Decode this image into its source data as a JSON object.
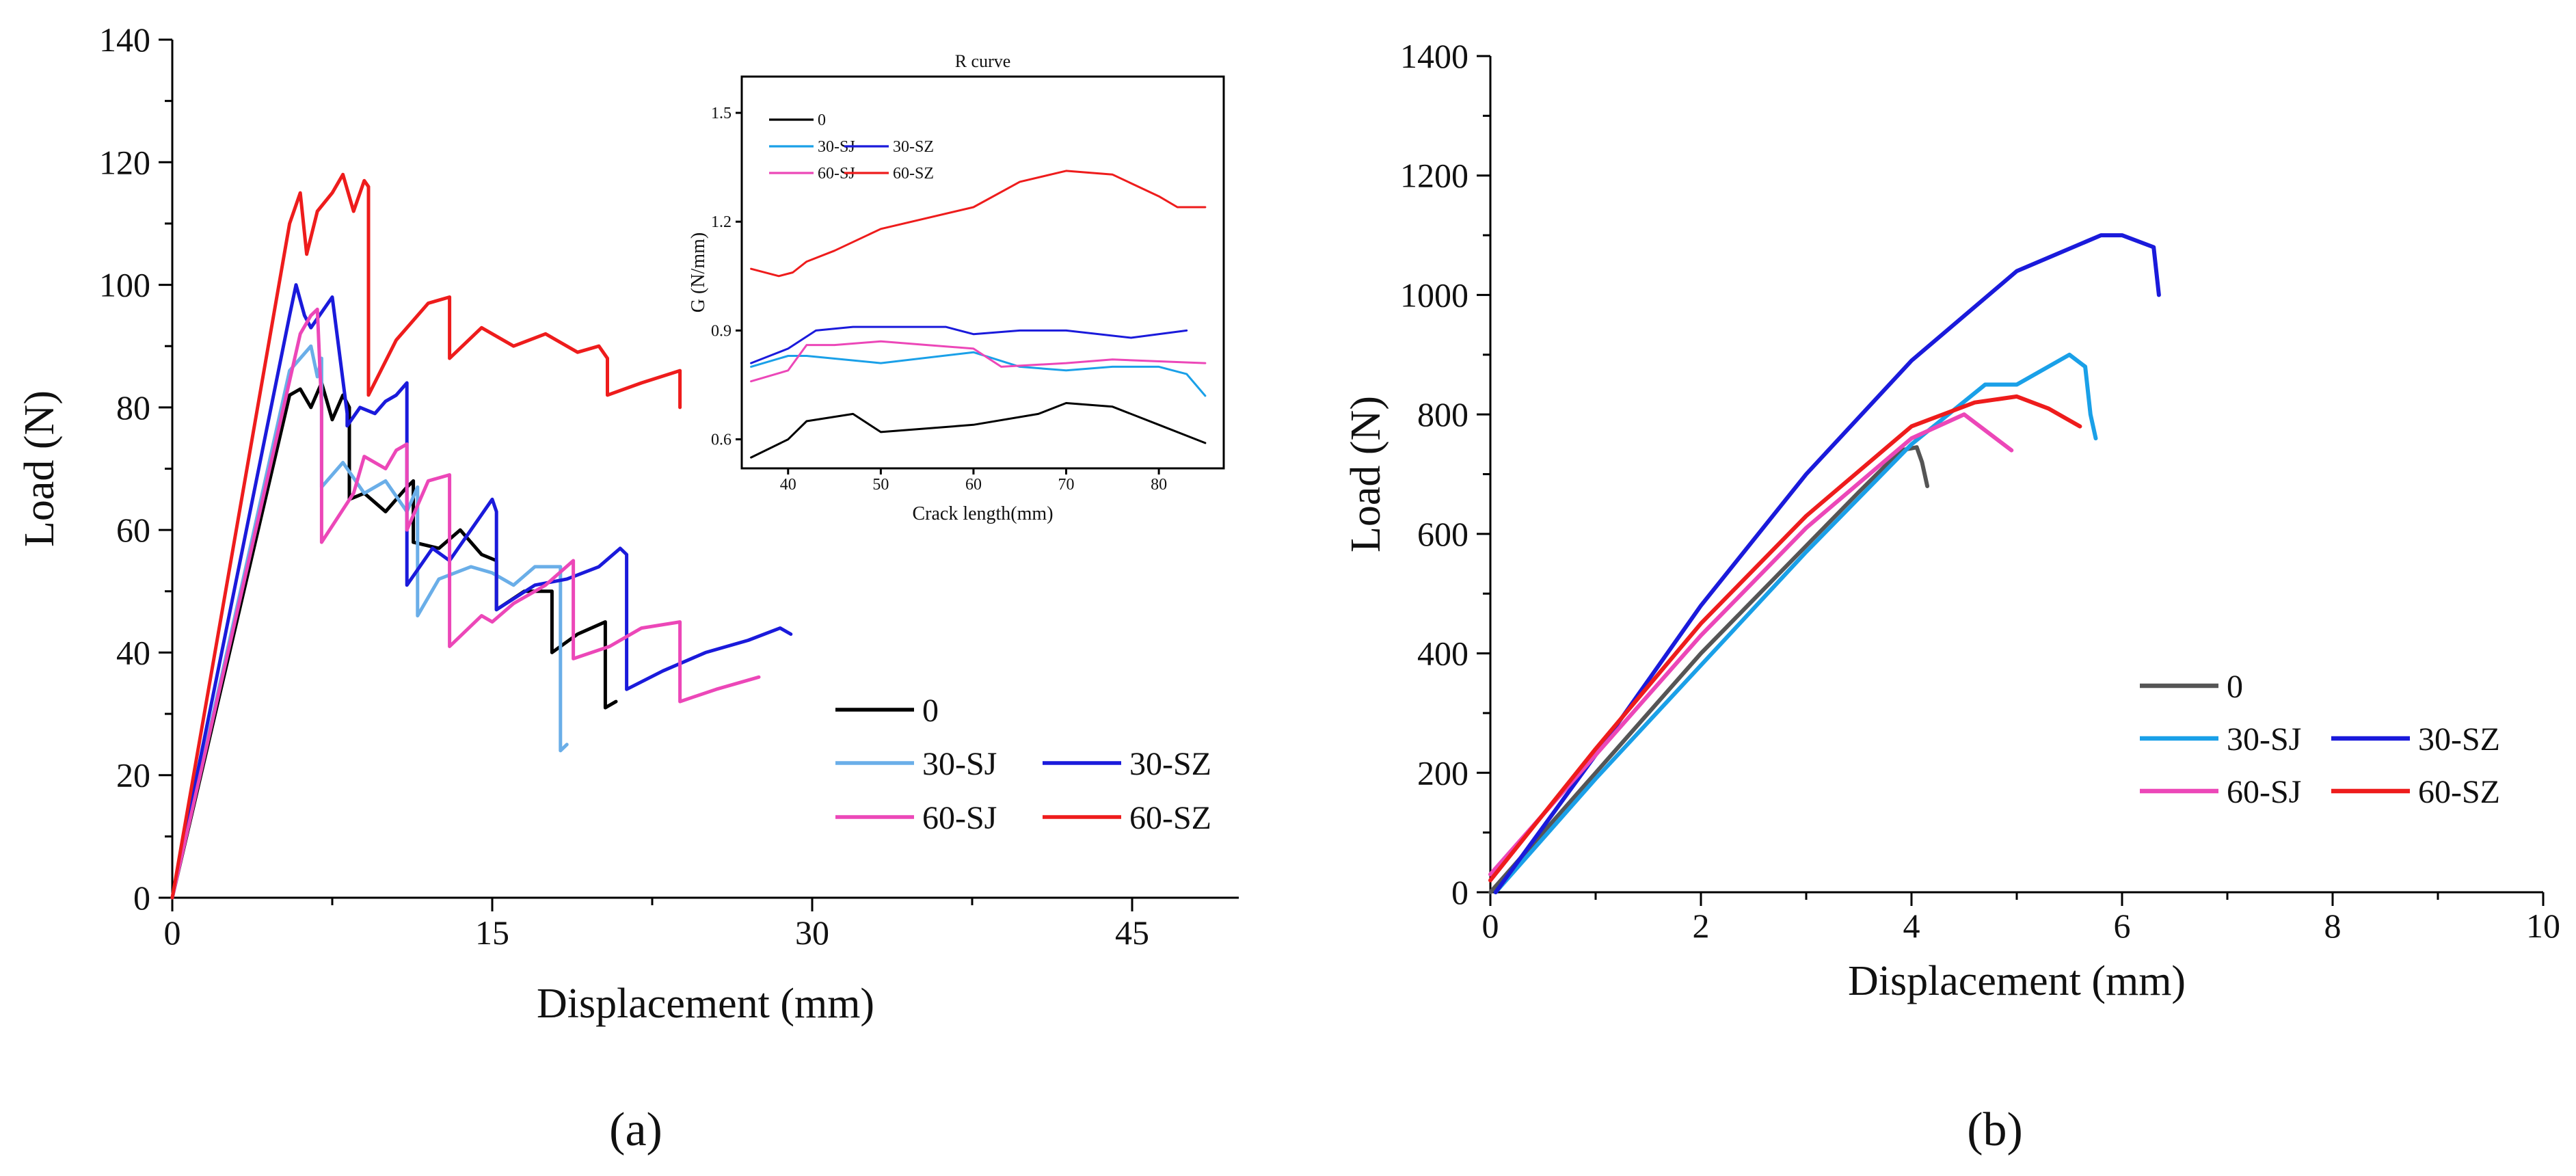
{
  "panel_labels": [
    "(a)",
    "(b)"
  ],
  "chart_data": [
    {
      "type": "line",
      "panel": "(a)",
      "title": "",
      "xlabel": "Displacement (mm)",
      "ylabel": "Load (N)",
      "xlim": [
        0,
        50
      ],
      "ylim": [
        0,
        140
      ],
      "xticks": [
        "0",
        "15",
        "30",
        "45"
      ],
      "xtick_values": [
        0,
        15,
        30,
        45
      ],
      "yticks": [
        "0",
        "20",
        "40",
        "60",
        "80",
        "100",
        "120",
        "140"
      ],
      "ytick_values": [
        0,
        20,
        40,
        60,
        80,
        100,
        120,
        140
      ],
      "legend": [
        "0",
        "30-SJ",
        "30-SZ",
        "60-SJ",
        "60-SZ"
      ],
      "legend_position": "bottom-right",
      "series": [
        {
          "name": "0",
          "color": "#000000",
          "x": [
            0,
            5.5,
            6,
            6.5,
            7,
            7.5,
            8,
            8.3,
            8.3,
            9,
            10,
            11,
            11.3,
            11.3,
            12.5,
            13.5,
            14.5,
            15.2,
            15.2,
            16.5,
            17.8,
            17.8,
            19,
            20.3,
            20.3,
            20.8
          ],
          "y": [
            0,
            82,
            83,
            80,
            84,
            78,
            82,
            80,
            65,
            66,
            63,
            67,
            68,
            58,
            57,
            60,
            56,
            55,
            47,
            50,
            50,
            40,
            43,
            45,
            31,
            32
          ]
        },
        {
          "name": "30-SJ",
          "color": "#6aaee8",
          "x": [
            0,
            5.5,
            6,
            6.5,
            6.8,
            7,
            7,
            8,
            9,
            10,
            11,
            11.5,
            11.5,
            12.5,
            14,
            15,
            16,
            17,
            18.2,
            18.2,
            18.5
          ],
          "y": [
            0,
            86,
            88,
            90,
            85,
            88,
            67,
            71,
            66,
            68,
            63,
            67,
            46,
            52,
            54,
            53,
            51,
            54,
            54,
            24,
            25
          ]
        },
        {
          "name": "30-SZ",
          "color": "#1a1adb",
          "x": [
            0,
            5.5,
            5.8,
            6.2,
            6.5,
            7.5,
            8.2,
            8.2,
            8.8,
            9.5,
            10,
            10.5,
            11,
            11,
            12.2,
            13,
            15,
            15.2,
            15.2,
            17,
            18.5,
            20,
            21,
            21.3,
            21.3,
            23,
            25,
            27,
            28.5,
            29
          ],
          "y": [
            0,
            95,
            100,
            95,
            93,
            98,
            79,
            77,
            80,
            79,
            81,
            82,
            84,
            51,
            57,
            55,
            65,
            63,
            47,
            51,
            52,
            54,
            57,
            56,
            34,
            37,
            40,
            42,
            44,
            43
          ]
        },
        {
          "name": "60-SJ",
          "color": "#ec47b8",
          "x": [
            0,
            6,
            6.5,
            6.8,
            7,
            7,
            8.5,
            9,
            10,
            10.5,
            11,
            11,
            12,
            13,
            13,
            14.5,
            15,
            16,
            17.5,
            18.8,
            18.8,
            20.5,
            22,
            23.8,
            23.8,
            25.5,
            27.5
          ],
          "y": [
            0,
            92,
            95,
            96,
            80,
            58,
            66,
            72,
            70,
            73,
            74,
            60,
            68,
            69,
            41,
            46,
            45,
            48,
            51,
            55,
            39,
            41,
            44,
            45,
            32,
            34,
            36
          ]
        },
        {
          "name": "60-SZ",
          "color": "#ee1c1c",
          "x": [
            0,
            5.5,
            6,
            6.3,
            6.8,
            7.5,
            8,
            8.5,
            9,
            9.2,
            9.2,
            10.5,
            12,
            13,
            13,
            14.5,
            16,
            17.5,
            19,
            20,
            20.4,
            20.4,
            22,
            23.8,
            23.8
          ],
          "y": [
            0,
            110,
            115,
            105,
            112,
            115,
            118,
            112,
            117,
            116,
            82,
            91,
            97,
            98,
            88,
            93,
            90,
            92,
            89,
            90,
            88,
            82,
            84,
            86,
            80
          ]
        }
      ]
    },
    {
      "type": "line",
      "panel": "inset",
      "title": "R curve",
      "xlabel": "Crack length(mm)",
      "ylabel": "G (N/mm)",
      "xlim": [
        35,
        87
      ],
      "ylim": [
        0.52,
        1.6
      ],
      "xticks": [
        "40",
        "50",
        "60",
        "70",
        "80"
      ],
      "xtick_values": [
        40,
        50,
        60,
        70,
        80
      ],
      "yticks": [
        "0.6",
        "0.9",
        "1.2",
        "1.5"
      ],
      "ytick_values": [
        0.6,
        0.9,
        1.2,
        1.5
      ],
      "legend": [
        "0",
        "30-SJ",
        "30-SZ",
        "60-SJ",
        "60-SZ"
      ],
      "legend_position": "top-left",
      "series": [
        {
          "name": "0",
          "color": "#000000",
          "x": [
            36,
            40,
            42,
            47,
            50,
            60,
            67,
            70,
            75,
            80,
            85
          ],
          "y": [
            0.55,
            0.6,
            0.65,
            0.67,
            0.62,
            0.64,
            0.67,
            0.7,
            0.69,
            0.64,
            0.59
          ]
        },
        {
          "name": "30-SJ",
          "color": "#1aa0e8",
          "x": [
            36,
            40,
            42,
            50,
            60,
            65,
            70,
            75,
            80,
            83,
            85
          ],
          "y": [
            0.8,
            0.83,
            0.83,
            0.81,
            0.84,
            0.8,
            0.79,
            0.8,
            0.8,
            0.78,
            0.72
          ]
        },
        {
          "name": "30-SZ",
          "color": "#1a1adb",
          "x": [
            36,
            38,
            40,
            43,
            47,
            57,
            60,
            65,
            70,
            77,
            83
          ],
          "y": [
            0.81,
            0.83,
            0.85,
            0.9,
            0.91,
            0.91,
            0.89,
            0.9,
            0.9,
            0.88,
            0.9
          ]
        },
        {
          "name": "60-SJ",
          "color": "#ec47b8",
          "x": [
            36,
            40,
            42,
            45,
            50,
            55,
            60,
            63,
            70,
            75,
            85
          ],
          "y": [
            0.76,
            0.79,
            0.86,
            0.86,
            0.87,
            0.86,
            0.85,
            0.8,
            0.81,
            0.82,
            0.81
          ]
        },
        {
          "name": "60-SZ",
          "color": "#ee1c1c",
          "x": [
            36,
            39,
            40.5,
            42,
            45,
            50,
            60,
            65,
            70,
            75,
            80,
            82,
            85
          ],
          "y": [
            1.07,
            1.05,
            1.06,
            1.09,
            1.12,
            1.18,
            1.24,
            1.31,
            1.34,
            1.33,
            1.27,
            1.24,
            1.24
          ]
        }
      ]
    },
    {
      "type": "line",
      "panel": "(b)",
      "title": "",
      "xlabel": "Displacement (mm)",
      "ylabel": "Load (N)",
      "xlim": [
        0,
        10
      ],
      "ylim": [
        0,
        1400
      ],
      "xticks": [
        "0",
        "2",
        "4",
        "6",
        "8",
        "10"
      ],
      "xtick_values": [
        0,
        2,
        4,
        6,
        8,
        10
      ],
      "yticks": [
        "0",
        "200",
        "400",
        "600",
        "800",
        "1000",
        "1200",
        "1400"
      ],
      "ytick_values": [
        0,
        200,
        400,
        600,
        800,
        1000,
        1200,
        1400
      ],
      "legend": [
        "0",
        "30-SJ",
        "30-SZ",
        "60-SJ",
        "60-SZ"
      ],
      "legend_position": "bottom-right",
      "series": [
        {
          "name": "0",
          "color": "#555555",
          "x": [
            0,
            1,
            2,
            3,
            3.5,
            3.9,
            4.05,
            4.1,
            4.15
          ],
          "y": [
            0,
            200,
            400,
            580,
            670,
            740,
            745,
            720,
            680
          ]
        },
        {
          "name": "30-SJ",
          "color": "#1aa0e8",
          "x": [
            0.05,
            1,
            2,
            3,
            4,
            4.7,
            5,
            5.5,
            5.65,
            5.7,
            5.75
          ],
          "y": [
            0,
            190,
            380,
            570,
            750,
            850,
            850,
            900,
            880,
            800,
            760
          ]
        },
        {
          "name": "30-SZ",
          "color": "#1a1adb",
          "x": [
            0.05,
            1,
            2,
            3,
            4,
            5,
            5.8,
            6,
            6.3,
            6.35
          ],
          "y": [
            0,
            230,
            480,
            700,
            890,
            1040,
            1100,
            1100,
            1080,
            1000
          ]
        },
        {
          "name": "60-SJ",
          "color": "#ec47b8",
          "x": [
            0,
            1,
            2,
            3,
            4,
            4.5,
            4.8,
            4.95
          ],
          "y": [
            30,
            230,
            430,
            610,
            760,
            800,
            760,
            740
          ]
        },
        {
          "name": "60-SZ",
          "color": "#ee1c1c",
          "x": [
            0,
            1,
            2,
            3,
            4,
            4.6,
            5,
            5.3,
            5.6
          ],
          "y": [
            20,
            240,
            450,
            630,
            780,
            820,
            830,
            810,
            780
          ]
        }
      ]
    }
  ]
}
